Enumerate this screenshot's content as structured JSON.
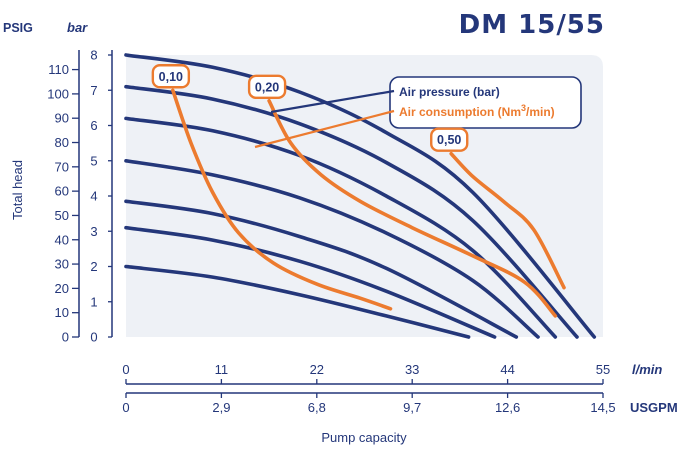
{
  "chart_data": {
    "type": "line",
    "title": "DM 15/55",
    "ylabel": "Total head",
    "xlabel": "Pump capacity",
    "x_unit_lmin": "l/min",
    "x_unit_usgpm": "USGPM",
    "y_unit_bar": "bar",
    "y_unit_psig": "PSIG",
    "xlim": [
      0,
      55
    ],
    "ylim": [
      0,
      8
    ],
    "grid": false,
    "legend_position": "top-right",
    "x_ticks_lmin": [
      "0",
      "11",
      "22",
      "33",
      "44",
      "55"
    ],
    "x_ticks_lmin_values": [
      0,
      11,
      22,
      33,
      44,
      55
    ],
    "x_ticks_usgpm": [
      "0",
      "2,9",
      "6,8",
      "9,7",
      "12,6",
      "14,5"
    ],
    "y_ticks_bar": [
      "0",
      "1",
      "2",
      "3",
      "4",
      "5",
      "6",
      "7",
      "8"
    ],
    "y_ticks_bar_values": [
      0,
      1,
      2,
      3,
      4,
      5,
      6,
      7,
      8
    ],
    "y_ticks_psig": [
      "0",
      "10",
      "20",
      "30",
      "40",
      "50",
      "60",
      "70",
      "80",
      "90",
      "100",
      "110"
    ],
    "y_ticks_psig_values": [
      0,
      10,
      20,
      30,
      40,
      50,
      60,
      70,
      80,
      90,
      100,
      110
    ],
    "legend": {
      "pressure_label": "Air pressure (bar)",
      "consumption_label_prefix": "Air consumption (Nm",
      "consumption_label_sup": "3",
      "consumption_label_suffix": "/min)"
    },
    "colors": {
      "pressure": "#24377a",
      "consumption": "#ec7b2f",
      "text": "#24377a"
    },
    "pressure_curves": [
      {
        "points": [
          [
            0,
            2.0
          ],
          [
            10,
            1.7
          ],
          [
            20,
            1.2
          ],
          [
            30,
            0.6
          ],
          [
            39.5,
            0.0
          ]
        ]
      },
      {
        "points": [
          [
            0,
            3.1
          ],
          [
            10,
            2.75
          ],
          [
            20,
            2.15
          ],
          [
            30,
            1.3
          ],
          [
            42.5,
            0.0
          ]
        ]
      },
      {
        "points": [
          [
            0,
            3.85
          ],
          [
            10,
            3.5
          ],
          [
            20,
            2.85
          ],
          [
            30,
            1.95
          ],
          [
            45,
            0.0
          ]
        ]
      },
      {
        "points": [
          [
            0,
            5.0
          ],
          [
            10,
            4.6
          ],
          [
            20,
            3.95
          ],
          [
            30,
            2.95
          ],
          [
            40,
            1.6
          ],
          [
            47.5,
            0.0
          ]
        ]
      },
      {
        "points": [
          [
            0,
            6.2
          ],
          [
            10,
            5.85
          ],
          [
            20,
            5.15
          ],
          [
            30,
            4.0
          ],
          [
            40,
            2.45
          ],
          [
            49.5,
            0.0
          ]
        ]
      },
      {
        "points": [
          [
            0,
            7.1
          ],
          [
            10,
            6.75
          ],
          [
            20,
            6.05
          ],
          [
            30,
            4.95
          ],
          [
            40,
            3.3
          ],
          [
            52,
            0.0
          ]
        ]
      },
      {
        "points": [
          [
            0,
            8.0
          ],
          [
            10,
            7.65
          ],
          [
            20,
            6.95
          ],
          [
            30,
            5.8
          ],
          [
            40,
            4.1
          ],
          [
            54,
            0.0
          ]
        ]
      }
    ],
    "consumption_curves": [
      {
        "label": "0,10",
        "points": [
          [
            5.4,
            7.0
          ],
          [
            7.5,
            5.5
          ],
          [
            10,
            4.1
          ],
          [
            13,
            2.95
          ],
          [
            17,
            2.1
          ],
          [
            22,
            1.5
          ],
          [
            27,
            1.1
          ],
          [
            30.5,
            0.8
          ]
        ]
      },
      {
        "label": "0,20",
        "points": [
          [
            16.5,
            6.7
          ],
          [
            19,
            5.5
          ],
          [
            22.5,
            4.6
          ],
          [
            27,
            3.85
          ],
          [
            33,
            3.1
          ],
          [
            40,
            2.3
          ],
          [
            46,
            1.55
          ],
          [
            49.5,
            0.6
          ]
        ]
      },
      {
        "label": "0,50",
        "points": [
          [
            37.5,
            5.2
          ],
          [
            40,
            4.55
          ],
          [
            43.5,
            3.85
          ],
          [
            47,
            3.05
          ],
          [
            50.5,
            1.4
          ]
        ]
      }
    ]
  }
}
